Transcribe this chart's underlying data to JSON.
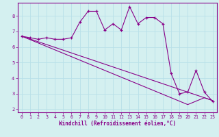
{
  "xlabel": "Windchill (Refroidissement éolien,°C)",
  "ylabel": "",
  "background_color": "#d4f0f0",
  "line_color": "#880088",
  "grid_color": "#b8e0e8",
  "border_color": "#880088",
  "xlim": [
    -0.5,
    23.5
  ],
  "ylim": [
    1.8,
    8.85
  ],
  "xticks": [
    0,
    1,
    2,
    3,
    4,
    5,
    6,
    7,
    8,
    9,
    10,
    11,
    12,
    13,
    14,
    15,
    16,
    17,
    18,
    19,
    20,
    21,
    22,
    23
  ],
  "yticks": [
    2,
    3,
    4,
    5,
    6,
    7,
    8
  ],
  "data_line": [
    6.7,
    6.6,
    6.5,
    6.6,
    6.5,
    6.5,
    6.6,
    7.6,
    8.3,
    8.3,
    7.1,
    7.5,
    7.1,
    8.6,
    7.5,
    7.9,
    7.9,
    7.5,
    4.3,
    3.0,
    3.1,
    4.5,
    3.1,
    2.5
  ],
  "reg_line1": [
    6.7,
    6.52,
    6.34,
    6.16,
    5.98,
    5.8,
    5.62,
    5.44,
    5.26,
    5.08,
    4.9,
    4.72,
    4.54,
    4.36,
    4.18,
    4.0,
    3.82,
    3.64,
    3.46,
    3.28,
    3.1,
    2.92,
    2.74,
    2.56
  ],
  "reg_line2": [
    6.7,
    6.48,
    6.26,
    6.04,
    5.82,
    5.6,
    5.38,
    5.16,
    4.94,
    4.72,
    4.5,
    4.28,
    4.06,
    3.84,
    3.62,
    3.4,
    3.18,
    2.96,
    2.74,
    2.52,
    2.3,
    2.52,
    2.74,
    2.56
  ]
}
